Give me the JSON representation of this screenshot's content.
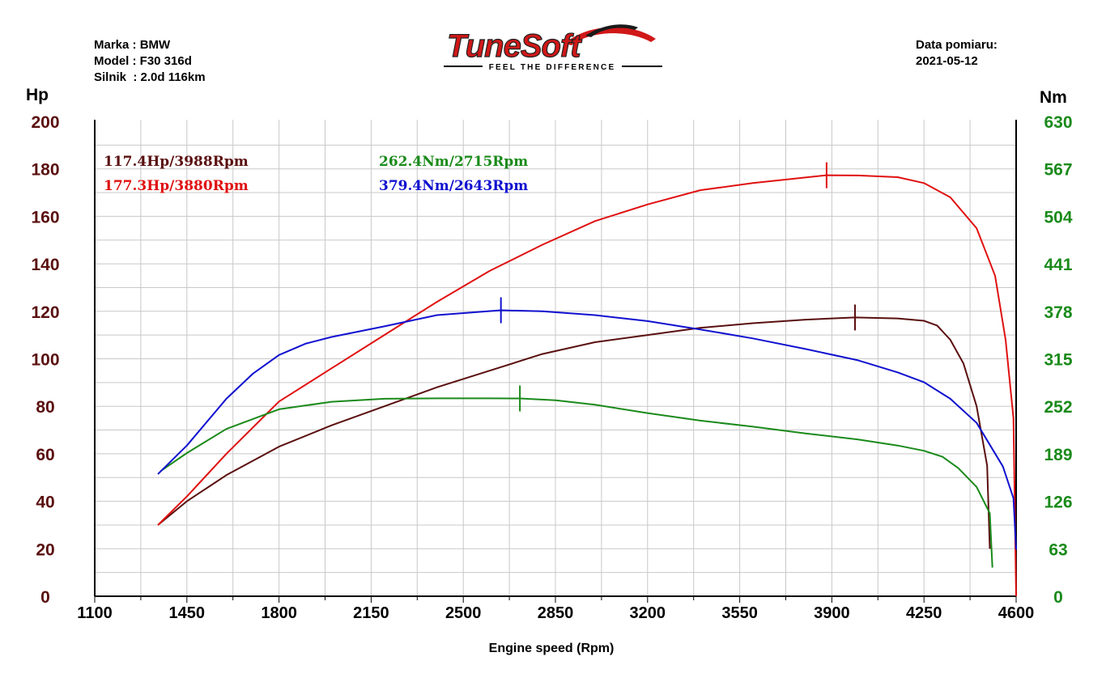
{
  "vehicle": {
    "make_label": "Marka :",
    "make": "BMW",
    "model_label": "Model :",
    "model": "F30 316d",
    "engine_label": "Silnik  :",
    "engine": "2.0d 116km"
  },
  "measurement": {
    "date_label": "Data pomiaru:",
    "date": "2021-05-12"
  },
  "logo": {
    "brand": "TuneSoft",
    "tagline": "FEEL THE DIFFERENCE"
  },
  "colors": {
    "stock_power": "#5a0f0f",
    "tuned_power": "#e01010",
    "stock_torque": "#1a8a1a",
    "tuned_torque": "#1010d0"
  },
  "chart_data": {
    "type": "line",
    "xlabel": "Engine speed (Rpm)",
    "ylabel_left": "Hp",
    "ylabel_right": "Nm",
    "xlim": [
      1100,
      4600
    ],
    "ylim_left": [
      0,
      200
    ],
    "ylim_right": [
      0,
      630
    ],
    "x_ticks": [
      "1100",
      "1450",
      "1800",
      "2150",
      "2500",
      "2850",
      "3200",
      "3550",
      "3900",
      "4250",
      "4600"
    ],
    "y_left_ticks": [
      "0",
      "20",
      "40",
      "60",
      "80",
      "100",
      "120",
      "140",
      "160",
      "180",
      "200"
    ],
    "y_right_ticks": [
      "0",
      "63",
      "126",
      "189",
      "252",
      "315",
      "378",
      "441",
      "504",
      "567",
      "630"
    ],
    "grid": true,
    "annotations": [
      {
        "text": "117.4Hp/3988Rpm",
        "series": "stock_power"
      },
      {
        "text": "177.3Hp/3880Rpm",
        "series": "tuned_power"
      },
      {
        "text": "262.4Nm/2715Rpm",
        "series": "stock_torque"
      },
      {
        "text": "379.4Nm/2643Rpm",
        "series": "tuned_torque"
      }
    ],
    "series": [
      {
        "key": "stock_power",
        "axis": "left",
        "peak_x": 3988,
        "peak_y": 117.4,
        "points": [
          [
            1340,
            30
          ],
          [
            1450,
            40
          ],
          [
            1600,
            51
          ],
          [
            1800,
            63
          ],
          [
            2000,
            72
          ],
          [
            2200,
            80
          ],
          [
            2400,
            88
          ],
          [
            2600,
            95
          ],
          [
            2800,
            102
          ],
          [
            3000,
            107
          ],
          [
            3200,
            110
          ],
          [
            3400,
            113
          ],
          [
            3600,
            115
          ],
          [
            3800,
            116.5
          ],
          [
            3988,
            117.4
          ],
          [
            4150,
            117
          ],
          [
            4250,
            116
          ],
          [
            4300,
            114
          ],
          [
            4350,
            108
          ],
          [
            4400,
            98
          ],
          [
            4450,
            80
          ],
          [
            4490,
            55
          ],
          [
            4500,
            20
          ]
        ]
      },
      {
        "key": "tuned_power",
        "axis": "left",
        "peak_x": 3880,
        "peak_y": 177.3,
        "points": [
          [
            1340,
            30
          ],
          [
            1450,
            42
          ],
          [
            1600,
            60
          ],
          [
            1800,
            82
          ],
          [
            2000,
            96
          ],
          [
            2200,
            110
          ],
          [
            2400,
            124
          ],
          [
            2600,
            137
          ],
          [
            2800,
            148
          ],
          [
            3000,
            158
          ],
          [
            3200,
            165
          ],
          [
            3400,
            171
          ],
          [
            3600,
            174
          ],
          [
            3880,
            177.3
          ],
          [
            4000,
            177.2
          ],
          [
            4150,
            176.5
          ],
          [
            4250,
            174
          ],
          [
            4350,
            168
          ],
          [
            4450,
            155
          ],
          [
            4520,
            135
          ],
          [
            4560,
            108
          ],
          [
            4590,
            75
          ],
          [
            4600,
            0
          ]
        ]
      },
      {
        "key": "stock_torque",
        "axis": "right",
        "peak_x": 2715,
        "peak_y": 262.4,
        "points": [
          [
            1350,
            166
          ],
          [
            1450,
            190
          ],
          [
            1600,
            222
          ],
          [
            1800,
            248
          ],
          [
            2000,
            258
          ],
          [
            2200,
            262
          ],
          [
            2400,
            262.5
          ],
          [
            2600,
            262.5
          ],
          [
            2715,
            262.4
          ],
          [
            2850,
            260
          ],
          [
            3000,
            254
          ],
          [
            3200,
            243
          ],
          [
            3400,
            233
          ],
          [
            3600,
            225
          ],
          [
            3800,
            216
          ],
          [
            4000,
            208
          ],
          [
            4150,
            200
          ],
          [
            4250,
            193
          ],
          [
            4320,
            185
          ],
          [
            4380,
            170
          ],
          [
            4450,
            145
          ],
          [
            4500,
            110
          ],
          [
            4510,
            38
          ]
        ]
      },
      {
        "key": "tuned_torque",
        "axis": "right",
        "peak_x": 2643,
        "peak_y": 379.4,
        "points": [
          [
            1340,
            162
          ],
          [
            1450,
            200
          ],
          [
            1600,
            262
          ],
          [
            1700,
            295
          ],
          [
            1800,
            320
          ],
          [
            1900,
            335
          ],
          [
            2000,
            344
          ],
          [
            2200,
            358
          ],
          [
            2400,
            373
          ],
          [
            2643,
            379.4
          ],
          [
            2800,
            378
          ],
          [
            3000,
            373
          ],
          [
            3200,
            365
          ],
          [
            3400,
            354
          ],
          [
            3600,
            342
          ],
          [
            3800,
            328
          ],
          [
            4000,
            313
          ],
          [
            4150,
            297
          ],
          [
            4250,
            284
          ],
          [
            4350,
            262
          ],
          [
            4450,
            230
          ],
          [
            4550,
            172
          ],
          [
            4590,
            130
          ],
          [
            4600,
            62
          ]
        ]
      }
    ]
  }
}
